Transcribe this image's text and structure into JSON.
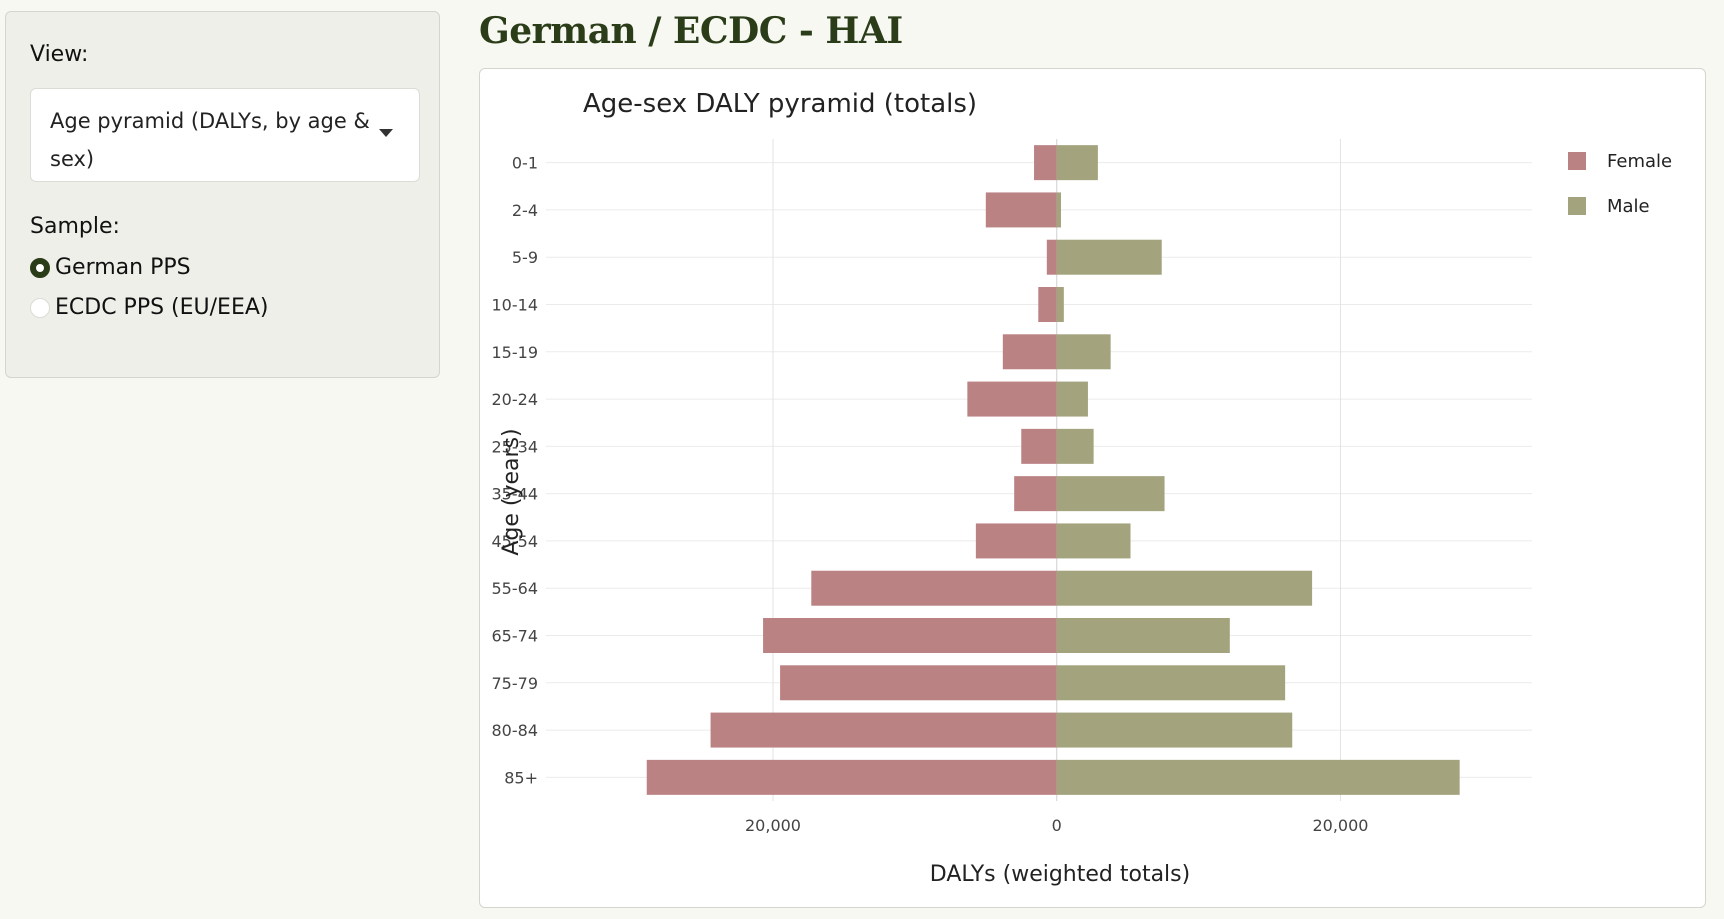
{
  "sidebar": {
    "view_label": "View:",
    "view_value": "Age pyramid (DALYs, by age & sex)",
    "sample_label": "Sample:",
    "sample_options": [
      {
        "label": "German PPS",
        "selected": true
      },
      {
        "label": "ECDC PPS (EU/EEA)",
        "selected": false
      }
    ]
  },
  "page": {
    "title": "German / ECDC - HAI"
  },
  "colors": {
    "female": "#bb8284",
    "male": "#a3a37e",
    "accent": "#2a3d18"
  },
  "chart_data": {
    "type": "bar",
    "orientation": "horizontal",
    "title": "Age-sex DALY pyramid (totals)",
    "xlabel": "DALYs (weighted totals)",
    "ylabel": "Age (years)",
    "xlim": [
      -36000,
      33500
    ],
    "xticks": [
      -20000,
      0,
      20000
    ],
    "xtick_labels": [
      "20,000",
      "0",
      "20,000"
    ],
    "grid": true,
    "legend_position": "top-right",
    "categories": [
      "0-1",
      "2-4",
      "5-9",
      "10-14",
      "15-19",
      "20-24",
      "25-34",
      "35-44",
      "45-54",
      "55-64",
      "65-74",
      "75-79",
      "80-84",
      "85+"
    ],
    "series": [
      {
        "name": "Female",
        "values": [
          -1600,
          -5000,
          -700,
          -1300,
          -3800,
          -6300,
          -2500,
          -3000,
          -5700,
          -17300,
          -20700,
          -19500,
          -24400,
          -28900
        ]
      },
      {
        "name": "Male",
        "values": [
          2900,
          300,
          7400,
          500,
          3800,
          2200,
          2600,
          7600,
          5200,
          18000,
          12200,
          16100,
          16600,
          28400
        ]
      }
    ]
  }
}
